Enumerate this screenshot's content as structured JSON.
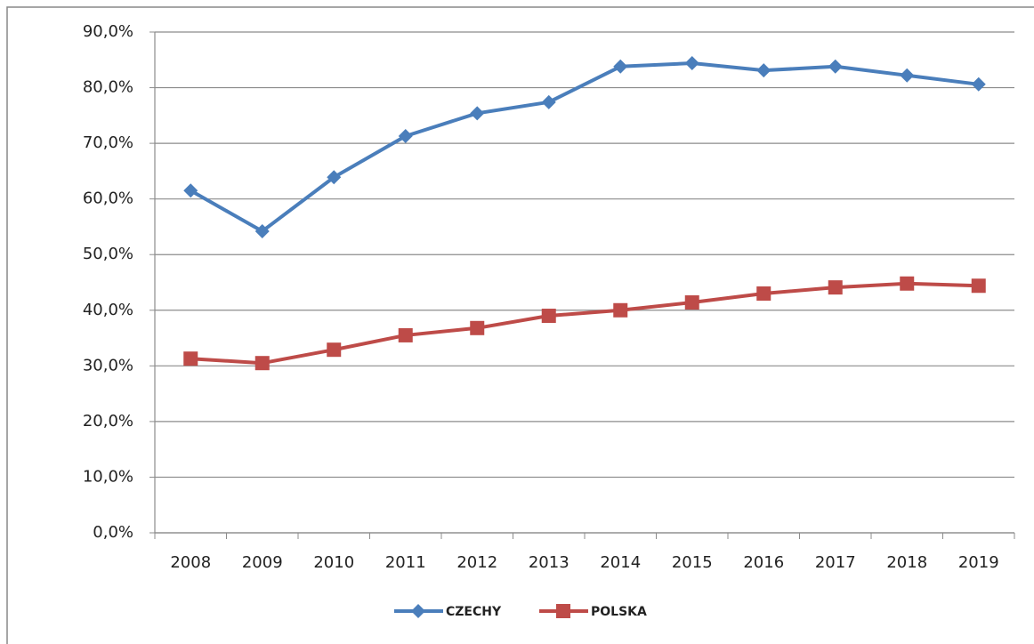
{
  "chart_data": {
    "type": "line",
    "categories": [
      "2008",
      "2009",
      "2010",
      "2011",
      "2012",
      "2013",
      "2014",
      "2015",
      "2016",
      "2017",
      "2018",
      "2019"
    ],
    "series": [
      {
        "name": "CZECHY",
        "color": "#4a7ebb",
        "marker": "diamond",
        "values": [
          61.5,
          54.2,
          63.9,
          71.3,
          75.4,
          77.4,
          83.8,
          84.4,
          83.1,
          83.8,
          82.2,
          80.6
        ]
      },
      {
        "name": "POLSKA",
        "color": "#be4b48",
        "marker": "square",
        "values": [
          31.3,
          30.5,
          32.9,
          35.5,
          36.8,
          39.0,
          40.0,
          41.4,
          43.0,
          44.1,
          44.8,
          44.4
        ]
      }
    ],
    "ylim": [
      0,
      90
    ],
    "yticks": [
      {
        "value": 0,
        "label": "0,0%"
      },
      {
        "value": 10,
        "label": "10,0%"
      },
      {
        "value": 20,
        "label": "20,0%"
      },
      {
        "value": 30,
        "label": "30,0%"
      },
      {
        "value": 40,
        "label": "40,0%"
      },
      {
        "value": 50,
        "label": "50,0%"
      },
      {
        "value": 60,
        "label": "60,0%"
      },
      {
        "value": 70,
        "label": "70,0%"
      },
      {
        "value": 80,
        "label": "80,0%"
      },
      {
        "value": 90,
        "label": "90,0%"
      }
    ],
    "grid": true,
    "legend": "bottom"
  }
}
